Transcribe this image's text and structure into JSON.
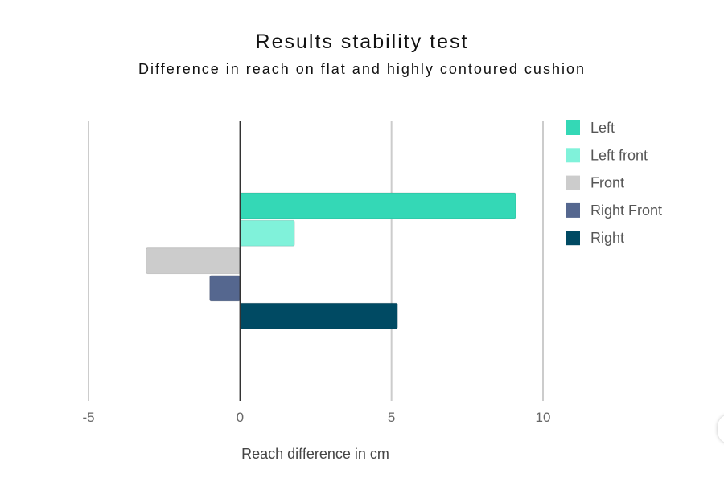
{
  "chart_data": {
    "type": "bar",
    "orientation": "horizontal",
    "title": "Results stability test",
    "subtitle": "Difference in reach on flat and highly contoured cushion",
    "xlabel": "Reach difference in cm",
    "ylabel": "",
    "xlim": [
      -5,
      10
    ],
    "xticks": [
      "-5",
      "0",
      "5",
      "10"
    ],
    "grid": true,
    "legend_position": "right",
    "series": [
      {
        "name": "Left",
        "value": 9.1,
        "color": "#34d8b6"
      },
      {
        "name": "Left front",
        "value": 1.8,
        "color": "#80f2da"
      },
      {
        "name": "Front",
        "value": -3.1,
        "color": "#cccccc"
      },
      {
        "name": "Right Front",
        "value": -1.0,
        "color": "#55678f"
      },
      {
        "name": "Right",
        "value": 5.2,
        "color": "#004a63"
      }
    ]
  }
}
